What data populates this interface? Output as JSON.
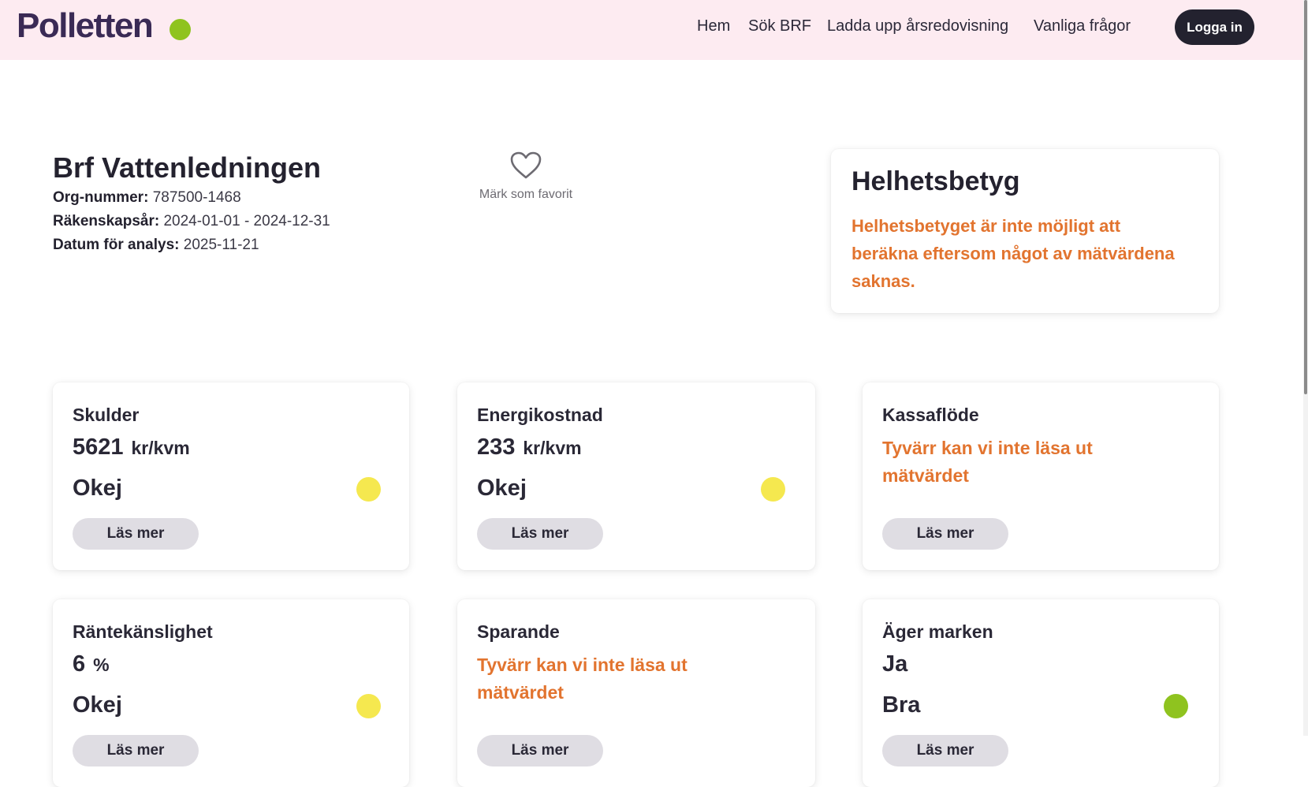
{
  "header": {
    "logo": "Polletten",
    "nav": [
      "Hem",
      "Sök BRF",
      "Ladda upp årsredovisning",
      "Vanliga frågor"
    ],
    "login_label": "Logga in",
    "accent_color": "#8fc31f",
    "background_color": "#fdebf1"
  },
  "org": {
    "name": "Brf Vattenledningen",
    "org_number_label": "Org-nummer:",
    "org_number": "787500-1468",
    "fiscal_year_label": "Räkenskapsår:",
    "fiscal_year": "2024-01-01 - 2024-12-31",
    "analysis_date_label": "Datum för analys:",
    "analysis_date": "2025-11-21",
    "favorite_label": "Märk som favorit",
    "favorite_icon": "heart-outline-icon"
  },
  "overall": {
    "title": "Helhetsbetyg",
    "message": "Helhetsbetyget är inte möjligt att beräkna eftersom något av mätvärdena saknas."
  },
  "metrics": [
    {
      "title": "Skulder",
      "value": "5621",
      "unit": "kr/kvm",
      "rating": "Okej",
      "status_color": "#f5e84f",
      "button": "Läs mer"
    },
    {
      "title": "Energikostnad",
      "value": "233",
      "unit": "kr/kvm",
      "rating": "Okej",
      "status_color": "#f5e84f",
      "button": "Läs mer"
    },
    {
      "title": "Kassaflöde",
      "error": "Tyvärr kan vi inte läsa ut mätvärdet",
      "button": "Läs mer"
    },
    {
      "title": "Räntekänslighet",
      "value": "6",
      "unit": "%",
      "rating": "Okej",
      "status_color": "#f5e84f",
      "button": "Läs mer"
    },
    {
      "title": "Sparande",
      "error": "Tyvärr kan vi inte läsa ut mätvärdet",
      "button": "Läs mer"
    },
    {
      "title": "Äger marken",
      "value": "Ja",
      "unit": "",
      "rating": "Bra",
      "status_color": "#8fc31f",
      "button": "Läs mer"
    }
  ]
}
